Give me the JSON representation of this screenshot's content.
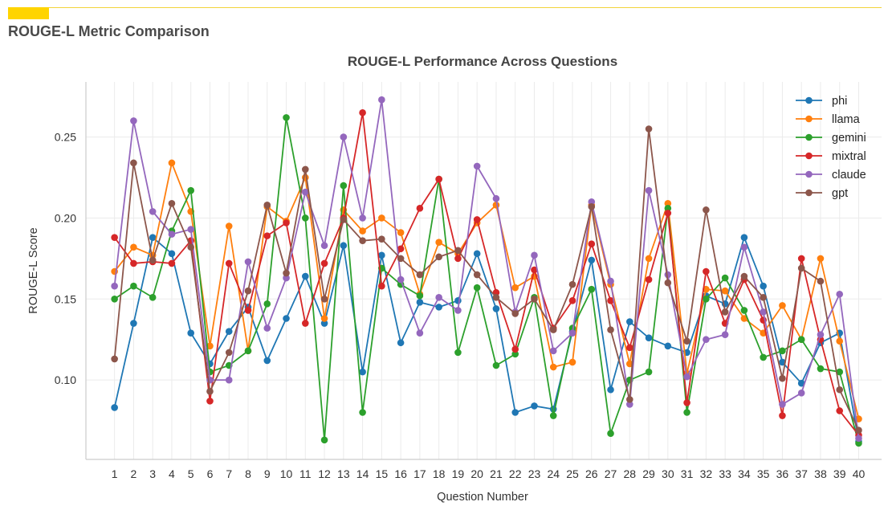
{
  "page": {
    "title": "ROUGE-L Metric Comparison"
  },
  "chart_data": {
    "type": "line",
    "title": "ROUGE-L Performance Across Questions",
    "xlabel": "Question Number",
    "ylabel": "ROUGE-L Score",
    "x": [
      1,
      2,
      3,
      4,
      5,
      6,
      7,
      8,
      9,
      10,
      11,
      12,
      13,
      14,
      15,
      16,
      17,
      18,
      19,
      20,
      21,
      22,
      23,
      24,
      25,
      26,
      27,
      28,
      29,
      30,
      31,
      32,
      33,
      34,
      35,
      36,
      37,
      38,
      39,
      40
    ],
    "xlim": [
      -0.5,
      41.2
    ],
    "ylim": [
      0.051,
      0.284
    ],
    "yticks": [
      0.1,
      0.15,
      0.2,
      0.25
    ],
    "ytick_labels": [
      "0.10",
      "0.15",
      "0.20",
      "0.25"
    ],
    "grid": true,
    "legend_position": "top-right",
    "series": [
      {
        "name": "phi",
        "color": "#1f77b4",
        "values": [
          0.083,
          0.135,
          0.188,
          0.178,
          0.129,
          0.11,
          0.13,
          0.145,
          0.112,
          0.138,
          0.164,
          0.135,
          0.183,
          0.105,
          0.177,
          0.123,
          0.148,
          0.145,
          0.149,
          0.178,
          0.144,
          0.08,
          0.084,
          0.082,
          0.13,
          0.174,
          0.094,
          0.136,
          0.126,
          0.121,
          0.117,
          0.152,
          0.147,
          0.188,
          0.158,
          0.111,
          0.098,
          0.123,
          0.129,
          0.062
        ]
      },
      {
        "name": "llama",
        "color": "#ff7f0e",
        "values": [
          0.167,
          0.182,
          0.177,
          0.234,
          0.204,
          0.121,
          0.195,
          0.118,
          0.207,
          0.198,
          0.225,
          0.138,
          0.205,
          0.192,
          0.2,
          0.191,
          0.153,
          0.185,
          0.178,
          0.197,
          0.208,
          0.157,
          0.164,
          0.108,
          0.111,
          0.208,
          0.159,
          0.11,
          0.175,
          0.209,
          0.104,
          0.156,
          0.155,
          0.138,
          0.129,
          0.146,
          0.125,
          0.175,
          0.124,
          0.076
        ]
      },
      {
        "name": "gemini",
        "color": "#2ca02c",
        "values": [
          0.15,
          0.158,
          0.151,
          0.192,
          0.217,
          0.105,
          0.109,
          0.118,
          0.147,
          0.262,
          0.2,
          0.063,
          0.22,
          0.08,
          0.169,
          0.159,
          0.152,
          0.224,
          0.117,
          0.157,
          0.109,
          0.116,
          0.151,
          0.078,
          0.132,
          0.156,
          0.067,
          0.1,
          0.105,
          0.206,
          0.08,
          0.15,
          0.163,
          0.143,
          0.114,
          0.118,
          0.125,
          0.107,
          0.105,
          0.061
        ]
      },
      {
        "name": "mixtral",
        "color": "#d62728",
        "values": [
          0.188,
          0.172,
          0.173,
          0.172,
          0.186,
          0.087,
          0.172,
          0.143,
          0.189,
          0.197,
          0.135,
          0.172,
          0.2,
          0.265,
          0.158,
          0.181,
          0.206,
          0.224,
          0.175,
          0.199,
          0.154,
          0.119,
          0.168,
          0.132,
          0.149,
          0.184,
          0.149,
          0.12,
          0.162,
          0.203,
          0.086,
          0.167,
          0.135,
          0.162,
          0.137,
          0.078,
          0.175,
          0.125,
          0.081,
          0.066
        ]
      },
      {
        "name": "claude",
        "color": "#9467bd",
        "values": [
          0.158,
          0.26,
          0.204,
          0.19,
          0.193,
          0.1,
          0.1,
          0.173,
          0.132,
          0.163,
          0.216,
          0.183,
          0.25,
          0.2,
          0.273,
          0.162,
          0.129,
          0.151,
          0.143,
          0.232,
          0.212,
          0.142,
          0.177,
          0.118,
          0.129,
          0.21,
          0.161,
          0.085,
          0.217,
          0.165,
          0.102,
          0.125,
          0.128,
          0.182,
          0.142,
          0.085,
          0.092,
          0.128,
          0.153,
          0.064
        ]
      },
      {
        "name": "gpt",
        "color": "#8c564b",
        "values": [
          0.113,
          0.234,
          0.174,
          0.209,
          0.182,
          0.093,
          0.117,
          0.155,
          0.208,
          0.166,
          0.23,
          0.15,
          0.199,
          0.186,
          0.187,
          0.175,
          0.165,
          0.176,
          0.18,
          0.165,
          0.151,
          0.141,
          0.15,
          0.131,
          0.159,
          0.207,
          0.131,
          0.088,
          0.255,
          0.16,
          0.124,
          0.205,
          0.142,
          0.164,
          0.151,
          0.101,
          0.169,
          0.161,
          0.094,
          0.069
        ]
      }
    ]
  }
}
